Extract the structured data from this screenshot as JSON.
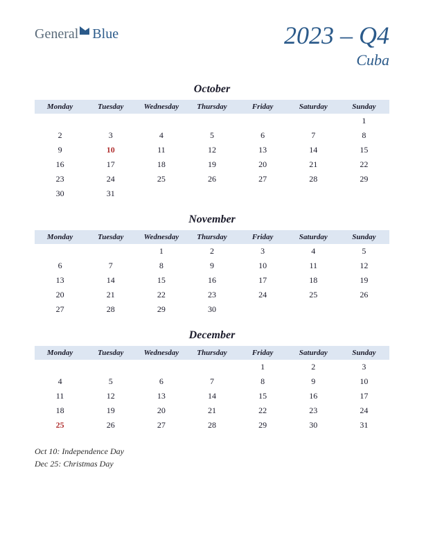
{
  "logo": {
    "part1": "General",
    "part2": "Blue"
  },
  "title": {
    "main": "2023 – Q4",
    "sub": "Cuba"
  },
  "weekdays": [
    "Monday",
    "Tuesday",
    "Wednesday",
    "Thursday",
    "Friday",
    "Saturday",
    "Sunday"
  ],
  "colors": {
    "header_bg": "#dde6f2",
    "accent": "#2b5a8a",
    "holiday": "#b03030",
    "text": "#1a1a2a"
  },
  "months": [
    {
      "name": "October",
      "weeks": [
        [
          "",
          "",
          "",
          "",
          "",
          "",
          "1"
        ],
        [
          "2",
          "3",
          "4",
          "5",
          "6",
          "7",
          "8"
        ],
        [
          "9",
          "10",
          "11",
          "12",
          "13",
          "14",
          "15"
        ],
        [
          "16",
          "17",
          "18",
          "19",
          "20",
          "21",
          "22"
        ],
        [
          "23",
          "24",
          "25",
          "26",
          "27",
          "28",
          "29"
        ],
        [
          "30",
          "31",
          "",
          "",
          "",
          "",
          ""
        ]
      ],
      "holiday_cells": [
        [
          2,
          1
        ]
      ]
    },
    {
      "name": "November",
      "weeks": [
        [
          "",
          "",
          "1",
          "2",
          "3",
          "4",
          "5"
        ],
        [
          "6",
          "7",
          "8",
          "9",
          "10",
          "11",
          "12"
        ],
        [
          "13",
          "14",
          "15",
          "16",
          "17",
          "18",
          "19"
        ],
        [
          "20",
          "21",
          "22",
          "23",
          "24",
          "25",
          "26"
        ],
        [
          "27",
          "28",
          "29",
          "30",
          "",
          "",
          ""
        ]
      ],
      "holiday_cells": []
    },
    {
      "name": "December",
      "weeks": [
        [
          "",
          "",
          "",
          "",
          "1",
          "2",
          "3"
        ],
        [
          "4",
          "5",
          "6",
          "7",
          "8",
          "9",
          "10"
        ],
        [
          "11",
          "12",
          "13",
          "14",
          "15",
          "16",
          "17"
        ],
        [
          "18",
          "19",
          "20",
          "21",
          "22",
          "23",
          "24"
        ],
        [
          "25",
          "26",
          "27",
          "28",
          "29",
          "30",
          "31"
        ]
      ],
      "holiday_cells": [
        [
          4,
          0
        ]
      ]
    }
  ],
  "holidays": [
    "Oct 10: Independence Day",
    "Dec 25: Christmas Day"
  ]
}
